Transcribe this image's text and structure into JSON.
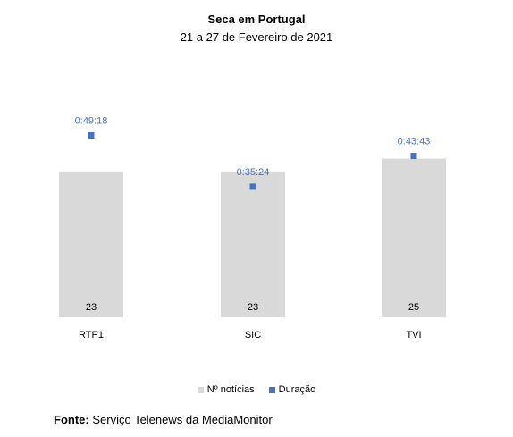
{
  "chart_data": {
    "type": "bar",
    "title": "Seca em Portugal",
    "subtitle": "21 a 27 de Fevereiro de 2021",
    "categories": [
      "RTP1",
      "SIC",
      "TVI"
    ],
    "series": [
      {
        "name": "Nº notícias",
        "type": "bar",
        "color": "#d9d9d9",
        "values": [
          23,
          23,
          25
        ]
      },
      {
        "name": "Duração",
        "type": "scatter",
        "color": "#4472c4",
        "values": [
          "0:49:18",
          "0:35:24",
          "0:43:43"
        ],
        "values_seconds": [
          2958,
          2124,
          2623
        ]
      }
    ],
    "ylim_bars": [
      0,
      32
    ],
    "ylim_duration_seconds": [
      0,
      3300
    ],
    "grid": false,
    "legend": "bottom"
  },
  "footer": {
    "label": "Fonte:",
    "text": "Serviço Telenews da MediaMonitor"
  }
}
